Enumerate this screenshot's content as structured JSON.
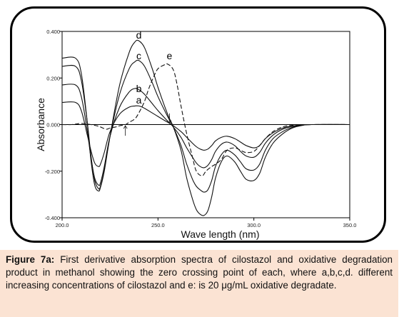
{
  "chart_data": {
    "type": "line",
    "xlabel": "Wave length (nm)",
    "ylabel": "Absorbance",
    "xlim": [
      200,
      350
    ],
    "ylim": [
      -0.4,
      0.4
    ],
    "x_ticks": [
      "200.0",
      "250.0",
      "300.0",
      "350.0"
    ],
    "y_ticks": [
      "0.400",
      "0.200",
      "0.000",
      "-0.200",
      "-0.400"
    ],
    "grid": false,
    "series": [
      {
        "name": "a",
        "style": "solid",
        "label_at": [
          240,
          0.09
        ],
        "x": [
          200,
          207,
          210,
          213,
          215,
          217,
          219,
          220,
          222,
          225,
          230,
          235,
          238,
          240,
          243,
          247,
          250,
          255,
          258,
          262,
          265,
          268,
          270,
          272,
          274,
          276,
          278,
          280,
          283,
          286,
          290,
          293,
          296,
          300,
          303,
          306,
          310,
          315,
          320,
          325,
          330,
          350
        ],
        "y": [
          0.095,
          0.095,
          0.06,
          -0.04,
          -0.11,
          -0.165,
          -0.18,
          -0.17,
          -0.12,
          -0.03,
          0.045,
          0.075,
          0.08,
          0.08,
          0.07,
          0.05,
          0.035,
          0.01,
          -0.005,
          -0.03,
          -0.055,
          -0.08,
          -0.095,
          -0.105,
          -0.11,
          -0.105,
          -0.09,
          -0.07,
          -0.055,
          -0.05,
          -0.06,
          -0.075,
          -0.09,
          -0.1,
          -0.09,
          -0.06,
          -0.035,
          -0.015,
          -0.006,
          -0.002,
          0,
          0
        ]
      },
      {
        "name": "b",
        "style": "solid",
        "label_at": [
          240,
          0.14
        ],
        "x": [
          200,
          207,
          210,
          213,
          215,
          217,
          219,
          220,
          222,
          225,
          230,
          235,
          238,
          240,
          243,
          247,
          250,
          255,
          258,
          262,
          265,
          268,
          270,
          272,
          274,
          276,
          278,
          280,
          283,
          286,
          290,
          293,
          296,
          300,
          303,
          306,
          310,
          315,
          320,
          325,
          330,
          350
        ],
        "y": [
          0.17,
          0.17,
          0.12,
          -0.02,
          -0.14,
          -0.23,
          -0.26,
          -0.25,
          -0.18,
          -0.05,
          0.075,
          0.14,
          0.155,
          0.15,
          0.13,
          0.09,
          0.06,
          0.015,
          -0.01,
          -0.055,
          -0.1,
          -0.14,
          -0.165,
          -0.18,
          -0.185,
          -0.175,
          -0.15,
          -0.115,
          -0.085,
          -0.075,
          -0.09,
          -0.115,
          -0.135,
          -0.14,
          -0.12,
          -0.08,
          -0.045,
          -0.02,
          -0.008,
          -0.002,
          0,
          0
        ]
      },
      {
        "name": "c",
        "style": "solid",
        "label_at": [
          240,
          0.28
        ],
        "x": [
          200,
          207,
          210,
          213,
          215,
          217,
          219,
          220,
          222,
          225,
          230,
          235,
          238,
          240,
          243,
          247,
          250,
          255,
          258,
          262,
          265,
          268,
          270,
          272,
          274,
          276,
          278,
          280,
          283,
          286,
          290,
          293,
          296,
          300,
          303,
          306,
          310,
          315,
          320,
          325,
          330,
          350
        ],
        "y": [
          0.25,
          0.25,
          0.19,
          0.02,
          -0.13,
          -0.24,
          -0.275,
          -0.265,
          -0.195,
          -0.05,
          0.13,
          0.24,
          0.27,
          0.275,
          0.25,
          0.18,
          0.12,
          0.035,
          -0.01,
          -0.09,
          -0.17,
          -0.235,
          -0.265,
          -0.28,
          -0.29,
          -0.28,
          -0.24,
          -0.18,
          -0.13,
          -0.11,
          -0.13,
          -0.16,
          -0.19,
          -0.195,
          -0.17,
          -0.11,
          -0.06,
          -0.03,
          -0.012,
          -0.003,
          0,
          0
        ]
      },
      {
        "name": "d",
        "style": "solid",
        "label_at": [
          240,
          0.37
        ],
        "x": [
          200,
          207,
          210,
          213,
          215,
          217,
          219,
          220,
          222,
          225,
          230,
          235,
          238,
          240,
          243,
          247,
          250,
          255,
          258,
          262,
          265,
          268,
          270,
          272,
          274,
          276,
          278,
          280,
          283,
          286,
          290,
          293,
          296,
          300,
          303,
          306,
          310,
          315,
          320,
          325,
          330,
          350
        ],
        "y": [
          0.285,
          0.285,
          0.22,
          0.02,
          -0.15,
          -0.26,
          -0.285,
          -0.27,
          -0.2,
          -0.05,
          0.17,
          0.31,
          0.355,
          0.36,
          0.33,
          0.24,
          0.16,
          0.045,
          -0.01,
          -0.11,
          -0.23,
          -0.32,
          -0.365,
          -0.385,
          -0.39,
          -0.37,
          -0.31,
          -0.23,
          -0.16,
          -0.135,
          -0.16,
          -0.2,
          -0.235,
          -0.24,
          -0.21,
          -0.14,
          -0.08,
          -0.04,
          -0.015,
          -0.004,
          0,
          0
        ]
      },
      {
        "name": "e",
        "style": "dashed",
        "label_at": [
          256,
          0.28
        ],
        "x": [
          200,
          205,
          210,
          215,
          218,
          220,
          223,
          225,
          228,
          230,
          233,
          235,
          238,
          240,
          243,
          245,
          248,
          250,
          253,
          255,
          258,
          260,
          262,
          265,
          268,
          270,
          273,
          275,
          278,
          280,
          283,
          286,
          290,
          293,
          296,
          300,
          303,
          306,
          310,
          315,
          320,
          330,
          350
        ],
        "y": [
          0,
          0,
          0.005,
          0,
          -0.005,
          -0.01,
          -0.02,
          -0.015,
          -0.01,
          -0.005,
          0,
          0.01,
          0.025,
          0.05,
          0.1,
          0.15,
          0.21,
          0.24,
          0.255,
          0.26,
          0.235,
          0.17,
          0.08,
          -0.04,
          -0.14,
          -0.2,
          -0.22,
          -0.2,
          -0.18,
          -0.17,
          -0.15,
          -0.11,
          -0.1,
          -0.11,
          -0.12,
          -0.115,
          -0.09,
          -0.06,
          -0.03,
          -0.01,
          -0.003,
          0,
          0
        ]
      }
    ],
    "annotations": [
      {
        "type": "arrow",
        "x": 233,
        "y": -0.005,
        "direction": "up"
      },
      {
        "type": "arrow",
        "x": 256,
        "y": 0.005,
        "direction": "down"
      }
    ]
  },
  "caption": {
    "figure_label": "Figure 7a:",
    "text": " First derivative absorption spectra of cilostazol and oxidative degradation product in methanol showing the zero crossing point of each, where a,b,c,d. different increasing concentrations of cilostazol and e: is 20 μg/mL oxidative degradate."
  }
}
